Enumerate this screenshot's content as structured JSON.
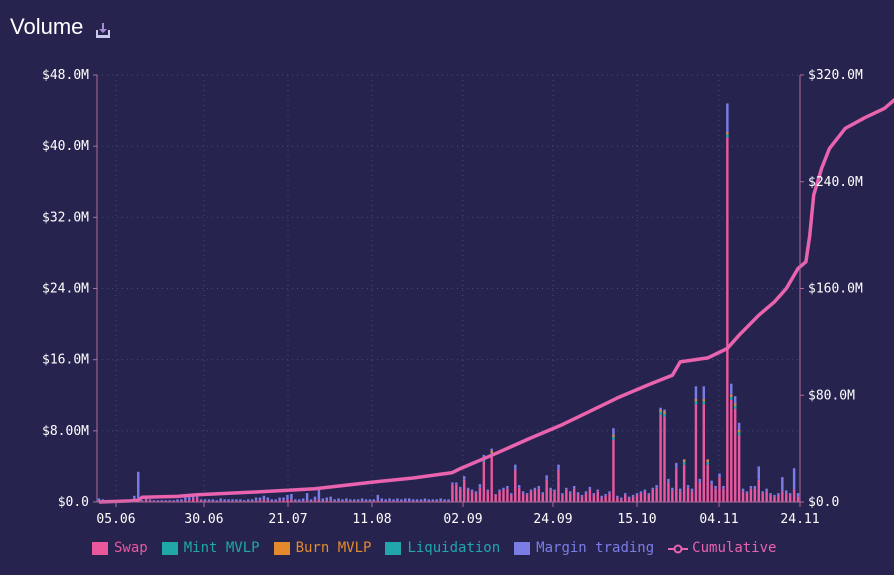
{
  "title": "Volume",
  "download_icon": "download-icon",
  "colors": {
    "background": "#26244f",
    "swap": "#e9589d",
    "mint": "#1fa8a6",
    "burn": "#e48a2d",
    "liquidation": "#20a6ab",
    "margin": "#7b7de6",
    "cumulative": "#e963ae",
    "axis": "#b06a9a",
    "grid": "#4a4a78"
  },
  "legend": [
    {
      "key": "swap",
      "label": "Swap",
      "color": "#e9589d"
    },
    {
      "key": "mint",
      "label": "Mint MVLP",
      "color": "#1fa8a6"
    },
    {
      "key": "burn",
      "label": "Burn MVLP",
      "color": "#e48a2d"
    },
    {
      "key": "liquidation",
      "label": "Liquidation",
      "color": "#20a6ab"
    },
    {
      "key": "margin",
      "label": "Margin trading",
      "color": "#7b7de6"
    },
    {
      "key": "cumulative",
      "label": "Cumulative",
      "color": "#e963ae"
    }
  ],
  "chart_data": {
    "type": "bar",
    "title": "Volume",
    "legend_position": "bottom",
    "grid": true,
    "x_ticks": [
      "05.06",
      "30.06",
      "21.07",
      "11.08",
      "02.09",
      "24.09",
      "15.10",
      "04.11",
      "24.11"
    ],
    "y_left": {
      "ylim": [
        0,
        48
      ],
      "unit": "M",
      "ticks": [
        "$0.0",
        "$8.00M",
        "$16.0M",
        "$24.0M",
        "$32.0M",
        "$40.0M",
        "$48.0M"
      ]
    },
    "y_right": {
      "ylim": [
        0,
        320
      ],
      "unit": "M",
      "ticks": [
        "$0.0",
        "$80.0M",
        "$160.0M",
        "$240.0M",
        "$320.0M"
      ]
    },
    "bars_swap_M": [
      0.1,
      0.2,
      0.1,
      0.1,
      0.1,
      0.1,
      0.1,
      0.1,
      0.1,
      0.2,
      0.2,
      0.1,
      0.3,
      0.2,
      0.1,
      0.1,
      0.1,
      0.1,
      0.1,
      0.1,
      0.1,
      0.1,
      0.2,
      0.2,
      0.4,
      0.5,
      0.2,
      0.1,
      0.1,
      0.1,
      0.1,
      0.1,
      0.1,
      0.1,
      0.1,
      0.1,
      0.1,
      0.1,
      0.1,
      0.1,
      0.2,
      0.2,
      0.3,
      0.2,
      0.1,
      0.1,
      0.2,
      0.2,
      0.3,
      0.3,
      0.1,
      0.1,
      0.1,
      0.2,
      0.1,
      0.2,
      0.3,
      0.1,
      0.2,
      0.2,
      0.1,
      0.1,
      0.1,
      0.1,
      0.1,
      0.1,
      0.1,
      0.1,
      0.1,
      0.1,
      0.1,
      0.2,
      0.1,
      0.1,
      0.1,
      0.1,
      0.1,
      0.1,
      0.1,
      0.1,
      0.1,
      0.1,
      0.1,
      0.1,
      0.1,
      0.1,
      0.1,
      0.1,
      0.1,
      0.1,
      2.0,
      2.0,
      1.5,
      2.5,
      1.4,
      1.2,
      1.0,
      1.6,
      4.5,
      1.2,
      5.2,
      0.8,
      1.2,
      1.4,
      1.5,
      0.8,
      3.6,
      1.6,
      1.0,
      0.8,
      1.2,
      1.4,
      1.5,
      0.9,
      2.5,
      1.4,
      1.2,
      3.6,
      0.8,
      1.4,
      1.0,
      1.5,
      0.9,
      0.6,
      1.0,
      1.4,
      0.8,
      1.2,
      0.5,
      0.7,
      1.0,
      7.0,
      0.5,
      0.3,
      0.8,
      0.4,
      0.6,
      0.8,
      1.0,
      1.2,
      0.8,
      1.4,
      1.6,
      9.8,
      9.6,
      2.2,
      1.3,
      3.8,
      1.2,
      4.2,
      1.6,
      1.2,
      11.0,
      2.2,
      11.0,
      4.2,
      2.0,
      1.5,
      2.8,
      1.5,
      41.0,
      11.5,
      10.5,
      7.5,
      1.2,
      1.0,
      1.5,
      1.5,
      2.5,
      1.0,
      1.2,
      0.8,
      0.6,
      0.8,
      1.2,
      1.0,
      0.8,
      1.4,
      0.6
    ],
    "bars_other_M": [
      0.3,
      0.1,
      0.1,
      0.1,
      0.1,
      0.1,
      0.1,
      0.1,
      0.2,
      0.5,
      3.2,
      0.1,
      0.1,
      0.1,
      0.1,
      0.1,
      0.1,
      0.1,
      0.1,
      0.1,
      0.2,
      0.2,
      0.3,
      0.4,
      0.3,
      0.3,
      0.1,
      0.2,
      0.2,
      0.2,
      0.1,
      0.3,
      0.2,
      0.2,
      0.2,
      0.2,
      0.2,
      0.1,
      0.2,
      0.2,
      0.3,
      0.3,
      0.4,
      0.3,
      0.2,
      0.2,
      0.3,
      0.3,
      0.5,
      0.6,
      0.2,
      0.2,
      0.3,
      0.8,
      0.2,
      0.4,
      1.1,
      0.3,
      0.3,
      0.4,
      0.2,
      0.3,
      0.2,
      0.3,
      0.2,
      0.2,
      0.2,
      0.3,
      0.2,
      0.2,
      0.2,
      0.6,
      0.3,
      0.2,
      0.3,
      0.2,
      0.3,
      0.2,
      0.3,
      0.3,
      0.2,
      0.2,
      0.2,
      0.3,
      0.2,
      0.2,
      0.2,
      0.3,
      0.2,
      0.2,
      0.2,
      0.2,
      0.2,
      0.4,
      0.2,
      0.2,
      0.2,
      0.4,
      0.8,
      0.2,
      0.8,
      0.1,
      0.2,
      0.2,
      0.3,
      0.2,
      0.6,
      0.3,
      0.2,
      0.2,
      0.2,
      0.2,
      0.3,
      0.2,
      0.5,
      0.2,
      0.2,
      0.6,
      0.2,
      0.2,
      0.2,
      0.3,
      0.2,
      0.2,
      0.2,
      0.3,
      0.2,
      0.2,
      0.2,
      0.2,
      0.2,
      1.3,
      0.2,
      0.2,
      0.2,
      0.2,
      0.2,
      0.2,
      0.2,
      0.2,
      0.2,
      0.2,
      0.3,
      0.8,
      0.8,
      0.4,
      0.3,
      0.6,
      0.3,
      0.6,
      0.3,
      0.3,
      2.0,
      0.4,
      2.0,
      0.6,
      0.4,
      0.3,
      0.4,
      0.3,
      3.8,
      1.8,
      1.4,
      1.4,
      0.3,
      0.2,
      0.3,
      0.3,
      1.5,
      0.2,
      0.3,
      0.2,
      0.2,
      0.2,
      1.6,
      0.3,
      0.2,
      2.4,
      0.4
    ],
    "cumulative_points_M": [
      [
        0,
        0
      ],
      [
        8,
        0.8
      ],
      [
        10,
        1.2
      ],
      [
        11,
        3.5
      ],
      [
        20,
        4.2
      ],
      [
        25,
        5.5
      ],
      [
        40,
        7.5
      ],
      [
        55,
        10
      ],
      [
        70,
        15
      ],
      [
        80,
        18
      ],
      [
        90,
        22
      ],
      [
        92,
        25
      ],
      [
        100,
        35
      ],
      [
        110,
        48
      ],
      [
        118,
        58
      ],
      [
        125,
        68
      ],
      [
        132,
        78
      ],
      [
        140,
        88
      ],
      [
        146,
        95
      ],
      [
        148,
        105
      ],
      [
        155,
        108
      ],
      [
        160,
        115
      ],
      [
        163,
        125
      ],
      [
        168,
        140
      ],
      [
        172,
        150
      ],
      [
        175,
        160
      ],
      [
        178,
        175
      ],
      [
        180,
        180
      ],
      [
        181,
        200
      ],
      [
        182,
        230
      ],
      [
        184,
        250
      ],
      [
        186,
        265
      ],
      [
        190,
        280
      ],
      [
        195,
        288
      ],
      [
        200,
        295
      ],
      [
        206,
        310
      ]
    ]
  }
}
